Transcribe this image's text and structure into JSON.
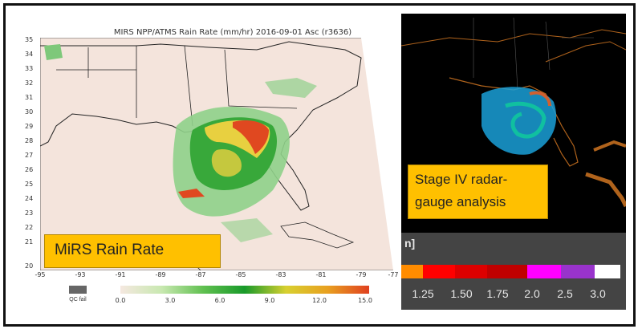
{
  "left_map": {
    "title": "MIRS NPP/ATMS Rain Rate (mm/hr) 2016-09-01 Asc (r3636)",
    "lat_ticks": [
      "35",
      "34",
      "33",
      "32",
      "31",
      "30",
      "29",
      "28",
      "27",
      "26",
      "25",
      "24",
      "23",
      "22",
      "21",
      "20"
    ],
    "lon_ticks": [
      "-95",
      "-93",
      "-91",
      "-89",
      "-87",
      "-85",
      "-83",
      "-81",
      "-79",
      "-77"
    ],
    "label": "MiRS Rain Rate",
    "qc_label": "QC fail",
    "colorbar_ticks": [
      "0.0",
      "3.0",
      "6.0",
      "9.0",
      "12.0",
      "15.0"
    ],
    "colors": {
      "background": "#f4e4dc",
      "land_mask": "#f2e6de",
      "rain_low": "#7ec87a",
      "rain_mid": "#27a02f",
      "rain_high": "#e8d040",
      "rain_peak": "#e04820"
    }
  },
  "right_map": {
    "label_line1": "Stage IV radar-",
    "label_line2": "gauge analysis",
    "legend_partial": "n]",
    "legend_ticks": [
      "1.25",
      "1.50",
      "1.75",
      "2.0",
      "2.5",
      "3.0"
    ],
    "legend_colors": [
      "#ff8c00",
      "#ff0000",
      "#dd0000",
      "#c00000",
      "#ff00ff",
      "#9933cc",
      "#ffffff"
    ],
    "colors": {
      "background": "#000000",
      "coast": "#b0631c",
      "rain_cyan": "#20b0e0",
      "rain_teal": "#10a090"
    }
  }
}
